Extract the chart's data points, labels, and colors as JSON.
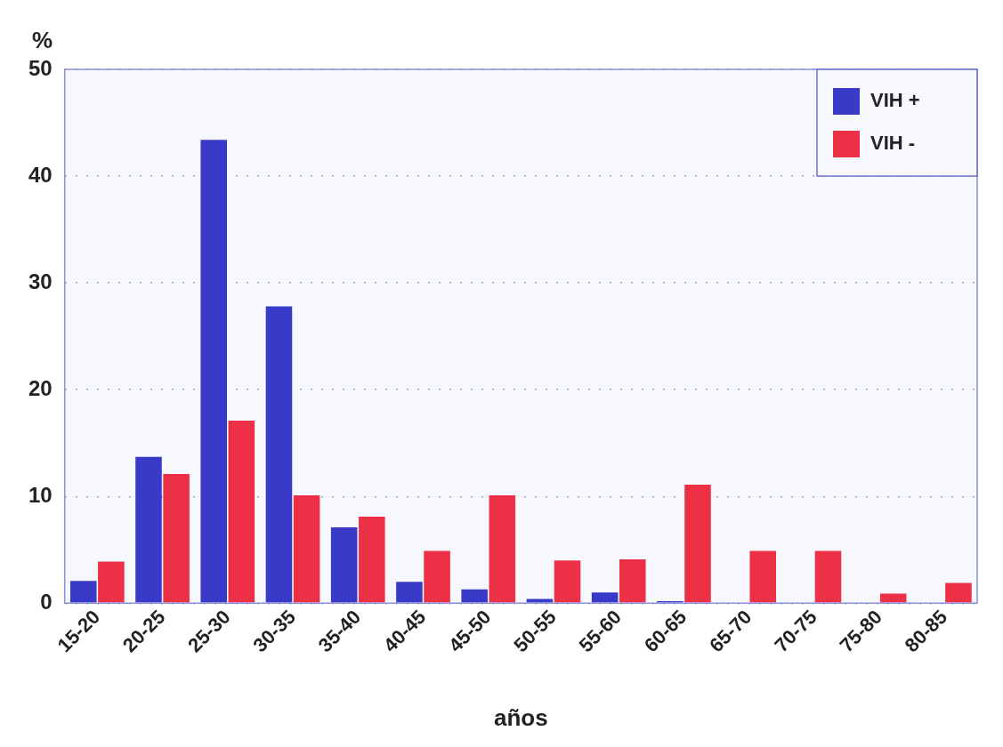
{
  "chart_data": {
    "type": "bar",
    "xlabel": "años",
    "ylabel": "%",
    "categories": [
      "15-20",
      "20-25",
      "25-30",
      "30-35",
      "35-40",
      "40-45",
      "45-50",
      "50-55",
      "55-60",
      "60-65",
      "65-70",
      "70-75",
      "75-80",
      "80-85"
    ],
    "series": [
      {
        "name": "VIH +",
        "color": "#3a3ac8",
        "values": [
          2.1,
          13.7,
          43.4,
          27.8,
          7.1,
          2.0,
          1.3,
          0.4,
          1.0,
          0.2,
          0,
          0,
          0,
          0
        ]
      },
      {
        "name": "VIH -",
        "color": "#ec3045",
        "values": [
          3.9,
          12.1,
          17.1,
          10.1,
          8.1,
          4.9,
          10.1,
          4.0,
          4.1,
          11.1,
          4.9,
          4.9,
          0.9,
          1.9
        ]
      }
    ],
    "ylim": [
      0,
      50
    ],
    "yticks": [
      0,
      10,
      20,
      30,
      40,
      50
    ],
    "grid": "y",
    "legend": "top right"
  }
}
